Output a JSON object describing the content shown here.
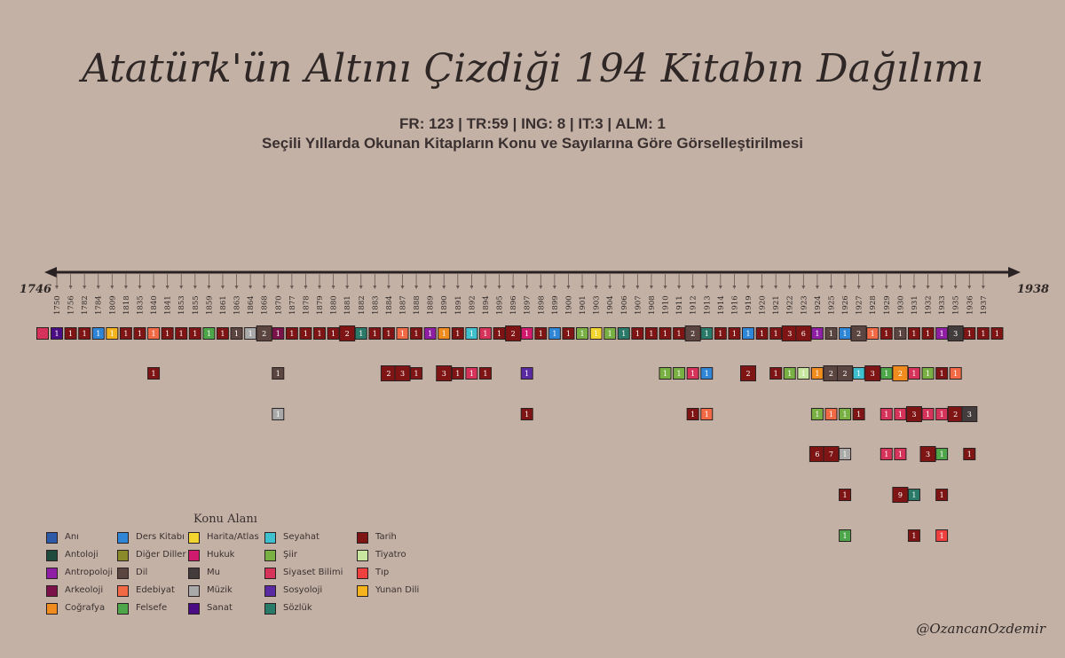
{
  "title": "Atatürk'ün Altını Çizdiği 194 Kitabın Dağılımı",
  "subtitle": "FR: 123 | TR:59 | ING: 8 | IT:3 | ALM: 1",
  "subtitle2": "Seçili Yıllarda Okunan Kitapların Konu ve Sayılarına Göre Görselleştirilmesi",
  "handle": "@OzancanOzdemir",
  "legend_title": "Konu Alanı",
  "chart_data": {
    "type": "timeline-tiles",
    "axis_start": "1746",
    "axis_end": "1938",
    "years": [
      "1750",
      "1756",
      "1782",
      "1784",
      "1809",
      "1818",
      "1835",
      "1840",
      "1841",
      "1853",
      "1855",
      "1859",
      "1861",
      "1863",
      "1864",
      "1868",
      "1870",
      "1877",
      "1878",
      "1879",
      "1880",
      "1881",
      "1882",
      "1883",
      "1884",
      "1887",
      "1888",
      "1889",
      "1890",
      "1891",
      "1892",
      "1894",
      "1895",
      "1896",
      "1897",
      "1898",
      "1899",
      "1900",
      "1901",
      "1903",
      "1904",
      "1906",
      "1907",
      "1908",
      "1910",
      "1911",
      "1912",
      "1913",
      "1914",
      "1916",
      "1919",
      "1920",
      "1921",
      "1922",
      "1923",
      "1924",
      "1925",
      "1926",
      "1927",
      "1928",
      "1929",
      "1930",
      "1931",
      "1932",
      "1933",
      "1935",
      "1936",
      "1937"
    ],
    "categories": [
      {
        "name": "Anı",
        "color": "#2c5aa8"
      },
      {
        "name": "Antoloji",
        "color": "#1f4a3e"
      },
      {
        "name": "Antropoloji",
        "color": "#8e1ea3"
      },
      {
        "name": "Arkeoloji",
        "color": "#7a1148"
      },
      {
        "name": "Coğrafya",
        "color": "#f08c1e"
      },
      {
        "name": "Ders Kitabı",
        "color": "#2f86d6"
      },
      {
        "name": "Diğer Diller",
        "color": "#8a8a2a"
      },
      {
        "name": "Dil",
        "color": "#5b4540"
      },
      {
        "name": "Edebiyat",
        "color": "#f26a45"
      },
      {
        "name": "Felsefe",
        "color": "#4ea64a"
      },
      {
        "name": "Harita/Atlas",
        "color": "#f2d52e"
      },
      {
        "name": "Hukuk",
        "color": "#cf1a6d"
      },
      {
        "name": "Mu",
        "color": "#423c3c"
      },
      {
        "name": "Müzik",
        "color": "#a9a9a9"
      },
      {
        "name": "Sanat",
        "color": "#4b0d84"
      },
      {
        "name": "Seyahat",
        "color": "#3fc0cf"
      },
      {
        "name": "Şiir",
        "color": "#78b043"
      },
      {
        "name": "Siyaset Bilimi",
        "color": "#d6335a"
      },
      {
        "name": "Sosyoloji",
        "color": "#5a2aa3"
      },
      {
        "name": "Sözlük",
        "color": "#2a7a6a"
      },
      {
        "name": "Tarih",
        "color": "#7e1414"
      },
      {
        "name": "Tiyatro",
        "color": "#c8e6a0"
      },
      {
        "name": "Tıp",
        "color": "#ef4040"
      },
      {
        "name": "Yunan Dili",
        "color": "#f5b41e"
      }
    ],
    "tiles": [
      {
        "year": "1746",
        "row": 1,
        "cat": "Siyaset Bilimi",
        "count": ""
      },
      {
        "year": "1750",
        "row": 1,
        "cat": "Sanat",
        "count": "1"
      },
      {
        "year": "1756",
        "row": 1,
        "cat": "Tarih",
        "count": "1"
      },
      {
        "year": "1782",
        "row": 1,
        "cat": "Tarih",
        "count": "1"
      },
      {
        "year": "1784",
        "row": 1,
        "cat": "Ders Kitabı",
        "count": "1"
      },
      {
        "year": "1809",
        "row": 1,
        "cat": "Yunan Dili",
        "count": "1"
      },
      {
        "year": "1818",
        "row": 1,
        "cat": "Tarih",
        "count": "1"
      },
      {
        "year": "1835",
        "row": 1,
        "cat": "Tarih",
        "count": "1"
      },
      {
        "year": "1840",
        "row": 1,
        "cat": "Edebiyat",
        "count": "1"
      },
      {
        "year": "1840",
        "row": 2,
        "cat": "Tarih",
        "count": "1"
      },
      {
        "year": "1841",
        "row": 1,
        "cat": "Tarih",
        "count": "1"
      },
      {
        "year": "1853",
        "row": 1,
        "cat": "Tarih",
        "count": "1"
      },
      {
        "year": "1855",
        "row": 1,
        "cat": "Tarih",
        "count": "1"
      },
      {
        "year": "1859",
        "row": 1,
        "cat": "Felsefe",
        "count": "1"
      },
      {
        "year": "1861",
        "row": 1,
        "cat": "Tarih",
        "count": "1"
      },
      {
        "year": "1863",
        "row": 1,
        "cat": "Dil",
        "count": "1"
      },
      {
        "year": "1864",
        "row": 1,
        "cat": "Müzik",
        "count": "1"
      },
      {
        "year": "1868",
        "row": 1,
        "cat": "Dil",
        "count": "2"
      },
      {
        "year": "1870",
        "row": 1,
        "cat": "Arkeoloji",
        "count": "1"
      },
      {
        "year": "1870",
        "row": 2,
        "cat": "Dil",
        "count": "1"
      },
      {
        "year": "1870",
        "row": 3,
        "cat": "Müzik",
        "count": "1"
      },
      {
        "year": "1877",
        "row": 1,
        "cat": "Tarih",
        "count": "1"
      },
      {
        "year": "1878",
        "row": 1,
        "cat": "Tarih",
        "count": "1"
      },
      {
        "year": "1879",
        "row": 1,
        "cat": "Tarih",
        "count": "1"
      },
      {
        "year": "1880",
        "row": 1,
        "cat": "Tarih",
        "count": "1"
      },
      {
        "year": "1881",
        "row": 1,
        "cat": "Tarih",
        "count": "2"
      },
      {
        "year": "1882",
        "row": 1,
        "cat": "Sözlük",
        "count": "1"
      },
      {
        "year": "1883",
        "row": 1,
        "cat": "Tarih",
        "count": "1"
      },
      {
        "year": "1884",
        "row": 1,
        "cat": "Tarih",
        "count": "1"
      },
      {
        "year": "1884",
        "row": 2,
        "cat": "Tarih",
        "count": "2"
      },
      {
        "year": "1887",
        "row": 1,
        "cat": "Edebiyat",
        "count": "1"
      },
      {
        "year": "1887",
        "row": 2,
        "cat": "Tarih",
        "count": "3"
      },
      {
        "year": "1888",
        "row": 1,
        "cat": "Tarih",
        "count": "1"
      },
      {
        "year": "1888",
        "row": 2,
        "cat": "Tarih",
        "count": "1"
      },
      {
        "year": "1889",
        "row": 1,
        "cat": "Antropoloji",
        "count": "1"
      },
      {
        "year": "1890",
        "row": 1,
        "cat": "Coğrafya",
        "count": "1"
      },
      {
        "year": "1890",
        "row": 2,
        "cat": "Tarih",
        "count": "3"
      },
      {
        "year": "1891",
        "row": 1,
        "cat": "Tarih",
        "count": "1"
      },
      {
        "year": "1891",
        "row": 2,
        "cat": "Tarih",
        "count": "1"
      },
      {
        "year": "1892",
        "row": 1,
        "cat": "Seyahat",
        "count": "1"
      },
      {
        "year": "1892",
        "row": 2,
        "cat": "Siyaset Bilimi",
        "count": "1"
      },
      {
        "year": "1894",
        "row": 1,
        "cat": "Siyaset Bilimi",
        "count": "1"
      },
      {
        "year": "1894",
        "row": 2,
        "cat": "Tarih",
        "count": "1"
      },
      {
        "year": "1895",
        "row": 1,
        "cat": "Tarih",
        "count": "1"
      },
      {
        "year": "1896",
        "row": 1,
        "cat": "Tarih",
        "count": "2"
      },
      {
        "year": "1897",
        "row": 1,
        "cat": "Hukuk",
        "count": "1"
      },
      {
        "year": "1897",
        "row": 2,
        "cat": "Sosyoloji",
        "count": "1"
      },
      {
        "year": "1897",
        "row": 3,
        "cat": "Tarih",
        "count": "1"
      },
      {
        "year": "1898",
        "row": 1,
        "cat": "Tarih",
        "count": "1"
      },
      {
        "year": "1899",
        "row": 1,
        "cat": "Ders Kitabı",
        "count": "1"
      },
      {
        "year": "1900",
        "row": 1,
        "cat": "Tarih",
        "count": "1"
      },
      {
        "year": "1901",
        "row": 1,
        "cat": "Şiir",
        "count": "1"
      },
      {
        "year": "1903",
        "row": 1,
        "cat": "Harita/Atlas",
        "count": "1"
      },
      {
        "year": "1904",
        "row": 1,
        "cat": "Şiir",
        "count": "1"
      },
      {
        "year": "1906",
        "row": 1,
        "cat": "Sözlük",
        "count": "1"
      },
      {
        "year": "1907",
        "row": 1,
        "cat": "Tarih",
        "count": "1"
      },
      {
        "year": "1908",
        "row": 1,
        "cat": "Tarih",
        "count": "1"
      },
      {
        "year": "1910",
        "row": 1,
        "cat": "Tarih",
        "count": "1"
      },
      {
        "year": "1910",
        "row": 2,
        "cat": "Şiir",
        "count": "1"
      },
      {
        "year": "1911",
        "row": 1,
        "cat": "Tarih",
        "count": "1"
      },
      {
        "year": "1911",
        "row": 2,
        "cat": "Şiir",
        "count": "1"
      },
      {
        "year": "1912",
        "row": 1,
        "cat": "Dil",
        "count": "2"
      },
      {
        "year": "1912",
        "row": 2,
        "cat": "Siyaset Bilimi",
        "count": "1"
      },
      {
        "year": "1912",
        "row": 3,
        "cat": "Tarih",
        "count": "1"
      },
      {
        "year": "1913",
        "row": 1,
        "cat": "Sözlük",
        "count": "1"
      },
      {
        "year": "1913",
        "row": 2,
        "cat": "Ders Kitabı",
        "count": "1"
      },
      {
        "year": "1913",
        "row": 3,
        "cat": "Edebiyat",
        "count": "1"
      },
      {
        "year": "1914",
        "row": 1,
        "cat": "Tarih",
        "count": "1"
      },
      {
        "year": "1916",
        "row": 1,
        "cat": "Tarih",
        "count": "1"
      },
      {
        "year": "1919",
        "row": 1,
        "cat": "Ders Kitabı",
        "count": "1"
      },
      {
        "year": "1919",
        "row": 2,
        "cat": "Tarih",
        "count": "2"
      },
      {
        "year": "1920",
        "row": 1,
        "cat": "Tarih",
        "count": "1"
      },
      {
        "year": "1921",
        "row": 1,
        "cat": "Tarih",
        "count": "1"
      },
      {
        "year": "1921",
        "row": 2,
        "cat": "Tarih",
        "count": "1"
      },
      {
        "year": "1922",
        "row": 1,
        "cat": "Tarih",
        "count": "3"
      },
      {
        "year": "1922",
        "row": 2,
        "cat": "Şiir",
        "count": "1"
      },
      {
        "year": "1923",
        "row": 1,
        "cat": "Tarih",
        "count": "6"
      },
      {
        "year": "1923",
        "row": 2,
        "cat": "Tiyatro",
        "count": "1"
      },
      {
        "year": "1924",
        "row": 1,
        "cat": "Antropoloji",
        "count": "1"
      },
      {
        "year": "1924",
        "row": 2,
        "cat": "Coğrafya",
        "count": "1"
      },
      {
        "year": "1924",
        "row": 3,
        "cat": "Şiir",
        "count": "1"
      },
      {
        "year": "1924",
        "row": 4,
        "cat": "Tarih",
        "count": "6"
      },
      {
        "year": "1925",
        "row": 1,
        "cat": "Dil",
        "count": "1"
      },
      {
        "year": "1925",
        "row": 2,
        "cat": "Dil",
        "count": "2"
      },
      {
        "year": "1925",
        "row": 3,
        "cat": "Edebiyat",
        "count": "1"
      },
      {
        "year": "1925",
        "row": 4,
        "cat": "Tarih",
        "count": "7"
      },
      {
        "year": "1926",
        "row": 1,
        "cat": "Ders Kitabı",
        "count": "1"
      },
      {
        "year": "1926",
        "row": 2,
        "cat": "Dil",
        "count": "2"
      },
      {
        "year": "1926",
        "row": 3,
        "cat": "Şiir",
        "count": "1"
      },
      {
        "year": "1926",
        "row": 4,
        "cat": "Müzik",
        "count": "1"
      },
      {
        "year": "1926",
        "row": 5,
        "cat": "Tarih",
        "count": "1"
      },
      {
        "year": "1926",
        "row": 6,
        "cat": "Felsefe",
        "count": "1"
      },
      {
        "year": "1927",
        "row": 1,
        "cat": "Dil",
        "count": "2"
      },
      {
        "year": "1927",
        "row": 2,
        "cat": "Seyahat",
        "count": "1"
      },
      {
        "year": "1927",
        "row": 3,
        "cat": "Tarih",
        "count": "1"
      },
      {
        "year": "1928",
        "row": 1,
        "cat": "Edebiyat",
        "count": "1"
      },
      {
        "year": "1928",
        "row": 2,
        "cat": "Tarih",
        "count": "3"
      },
      {
        "year": "1929",
        "row": 1,
        "cat": "Tarih",
        "count": "1"
      },
      {
        "year": "1929",
        "row": 2,
        "cat": "Felsefe",
        "count": "1"
      },
      {
        "year": "1929",
        "row": 3,
        "cat": "Siyaset Bilimi",
        "count": "1"
      },
      {
        "year": "1929",
        "row": 4,
        "cat": "Siyaset Bilimi",
        "count": "1"
      },
      {
        "year": "1930",
        "row": 1,
        "cat": "Dil",
        "count": "1"
      },
      {
        "year": "1930",
        "row": 2,
        "cat": "Coğrafya",
        "count": "2"
      },
      {
        "year": "1930",
        "row": 3,
        "cat": "Siyaset Bilimi",
        "count": "1"
      },
      {
        "year": "1930",
        "row": 4,
        "cat": "Siyaset Bilimi",
        "count": "1"
      },
      {
        "year": "1930",
        "row": 5,
        "cat": "Tarih",
        "count": "9"
      },
      {
        "year": "1931",
        "row": 1,
        "cat": "Tarih",
        "count": "1"
      },
      {
        "year": "1931",
        "row": 2,
        "cat": "Siyaset Bilimi",
        "count": "1"
      },
      {
        "year": "1931",
        "row": 3,
        "cat": "Tarih",
        "count": "3"
      },
      {
        "year": "1931",
        "row": 5,
        "cat": "Sözlük",
        "count": "1"
      },
      {
        "year": "1931",
        "row": 6,
        "cat": "Tarih",
        "count": "1"
      },
      {
        "year": "1932",
        "row": 1,
        "cat": "Tarih",
        "count": "1"
      },
      {
        "year": "1932",
        "row": 2,
        "cat": "Şiir",
        "count": "1"
      },
      {
        "year": "1932",
        "row": 3,
        "cat": "Siyaset Bilimi",
        "count": "1"
      },
      {
        "year": "1932",
        "row": 4,
        "cat": "Tarih",
        "count": "3"
      },
      {
        "year": "1933",
        "row": 1,
        "cat": "Antropoloji",
        "count": "1"
      },
      {
        "year": "1933",
        "row": 2,
        "cat": "Tarih",
        "count": "1"
      },
      {
        "year": "1933",
        "row": 3,
        "cat": "Siyaset Bilimi",
        "count": "1"
      },
      {
        "year": "1933",
        "row": 4,
        "cat": "Felsefe",
        "count": "1"
      },
      {
        "year": "1933",
        "row": 5,
        "cat": "Tarih",
        "count": "1"
      },
      {
        "year": "1933",
        "row": 6,
        "cat": "Tıp",
        "count": "1"
      },
      {
        "year": "1935",
        "row": 1,
        "cat": "Mu",
        "count": "3"
      },
      {
        "year": "1935",
        "row": 2,
        "cat": "Edebiyat",
        "count": "1"
      },
      {
        "year": "1935",
        "row": 3,
        "cat": "Tarih",
        "count": "2"
      },
      {
        "year": "1936",
        "row": 1,
        "cat": "Tarih",
        "count": "1"
      },
      {
        "year": "1936",
        "row": 3,
        "cat": "Mu",
        "count": "3"
      },
      {
        "year": "1936",
        "row": 4,
        "cat": "Tarih",
        "count": "1"
      },
      {
        "year": "1937",
        "row": 1,
        "cat": "Tarih",
        "count": "1"
      },
      {
        "year": "1938",
        "row": 1,
        "cat": "Tarih",
        "count": "1"
      }
    ]
  }
}
